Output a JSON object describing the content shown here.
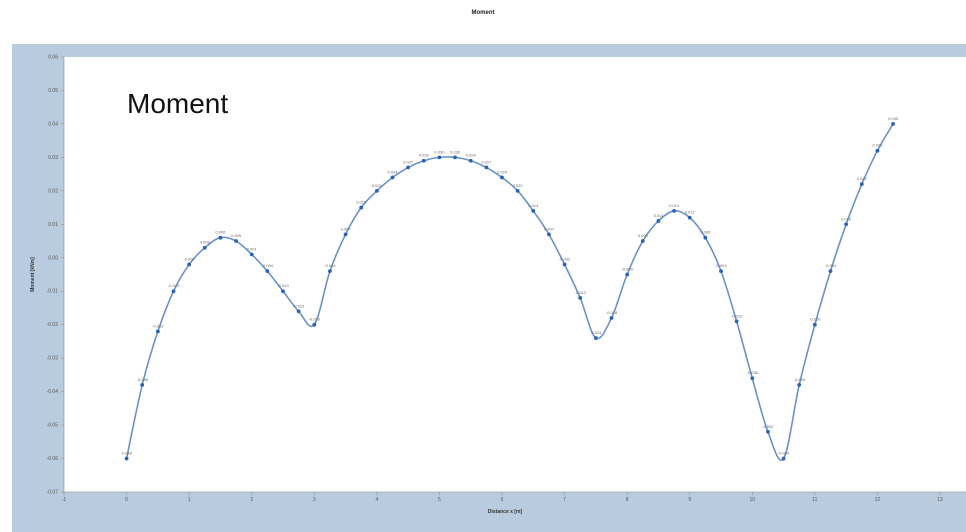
{
  "page": {
    "title": "Moment"
  },
  "chart_data": {
    "type": "line",
    "title": "Moment",
    "plot_label": "Moment",
    "xlabel": "Distance x [m]",
    "ylabel": "Moment [kNm]",
    "xlim": [
      -1,
      13
    ],
    "ylim": [
      -0.07,
      0.06
    ],
    "x_ticks": [
      "-1",
      "0",
      "1",
      "2",
      "3",
      "4",
      "5",
      "6",
      "7",
      "8",
      "9",
      "10",
      "11",
      "12",
      "13"
    ],
    "y_ticks": [
      "0.06",
      "0.05",
      "0.04",
      "0.03",
      "0.02",
      "0.01",
      "0.00",
      "-0.01",
      "-0.02",
      "-0.03",
      "-0.04",
      "-0.05",
      "-0.06",
      "-0.07"
    ],
    "grid": false,
    "legend": "none",
    "line_color": "#6a92c8",
    "marker_color": "#2a62b8",
    "series": [
      {
        "x": [
          0,
          0.25,
          0.5,
          0.75,
          1,
          1.25,
          1.5,
          1.75,
          2,
          2.25,
          2.5,
          2.75,
          3,
          3.25,
          3.5,
          3.75,
          4,
          4.25,
          4.5,
          4.75,
          5,
          5.25,
          5.5,
          5.75,
          6,
          6.25,
          6.5,
          6.75,
          7,
          7.25,
          7.5,
          7.75,
          8,
          8.25,
          8.5,
          8.75,
          9,
          9.25,
          9.5,
          9.75,
          10,
          10.25,
          10.5,
          10.75,
          11,
          11.25,
          11.5,
          11.75,
          12,
          12.25
        ],
        "y": [
          -0.06,
          -0.038,
          -0.022,
          -0.01,
          -0.002,
          0.003,
          0.006,
          0.005,
          0.001,
          -0.004,
          -0.01,
          -0.016,
          -0.02,
          -0.004,
          0.007,
          0.015,
          0.02,
          0.024,
          0.027,
          0.029,
          0.03,
          0.03,
          0.029,
          0.027,
          0.024,
          0.02,
          0.014,
          0.007,
          -0.002,
          -0.012,
          -0.024,
          -0.018,
          -0.005,
          0.005,
          0.011,
          0.014,
          0.012,
          0.006,
          -0.004,
          -0.019,
          -0.036,
          -0.052,
          -0.06,
          -0.038,
          -0.02,
          -0.004,
          0.01,
          0.022,
          0.032,
          0.04
        ]
      }
    ]
  }
}
